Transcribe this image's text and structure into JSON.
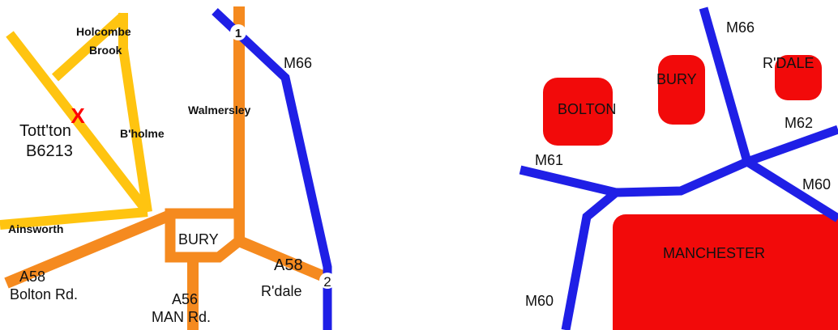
{
  "left_map": {
    "places": {
      "holcombe": "Holcombe",
      "brook": "Brook",
      "walmersley": "Walmersley",
      "bholme": "B'holme",
      "ainsworth": "Ainsworth",
      "bury": "BURY"
    },
    "marker": {
      "symbol": "X",
      "line1": "Tott'ton",
      "line2": "B6213"
    },
    "roads": {
      "m66": "M66",
      "a58_left": "A58",
      "bolton_rd": "Bolton Rd.",
      "a56": "A56",
      "man_rd": "MAN Rd.",
      "a58_right": "A58",
      "rdale": "R'dale"
    },
    "junctions": {
      "j1": "1",
      "j2": "2"
    }
  },
  "right_map": {
    "towns": {
      "bolton": "BOLTON",
      "bury": "BURY",
      "rdale": "R'DALE",
      "manchester": "MANCHESTER"
    },
    "roads": {
      "m66": "M66",
      "m62": "M62",
      "m61": "M61",
      "m60_right": "M60",
      "m60_left": "M60"
    }
  },
  "colors": {
    "motorway": "#1f1fe6",
    "a_road": "#f58a1f",
    "b_road": "#ffc410",
    "town": "#f20a0a",
    "marker": "#ff0000"
  }
}
